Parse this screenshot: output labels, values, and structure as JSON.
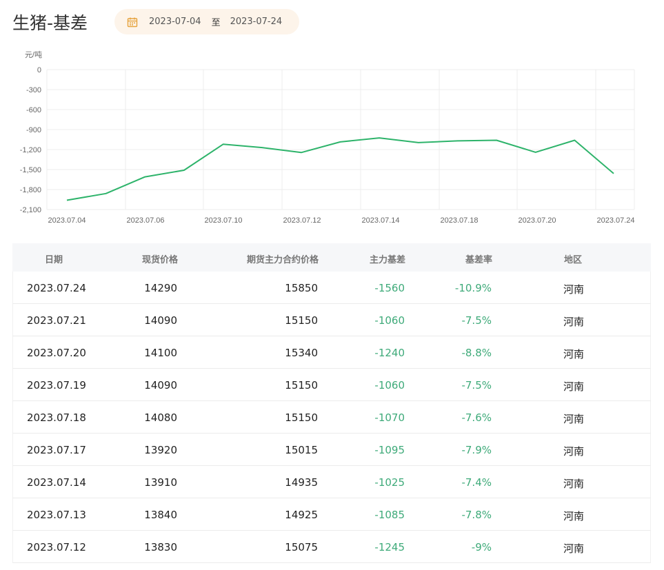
{
  "header": {
    "title": "生猪-基差",
    "date_start": "2023-07-04",
    "date_separator": "至",
    "date_end": "2023-07-24",
    "calendar_icon": "calendar-icon"
  },
  "chart_data": {
    "type": "line",
    "ylabel": "元/吨",
    "ylim": [
      -2100,
      0
    ],
    "yticks": [
      0,
      -300,
      -600,
      -900,
      -1200,
      -1500,
      -1800,
      -2100
    ],
    "ytick_labels": [
      "0",
      "-300",
      "-600",
      "-900",
      "-1,200",
      "-1,500",
      "-1,800",
      "-2,100"
    ],
    "xtick_labels": [
      "2023.07.04",
      "2023.07.06",
      "2023.07.10",
      "2023.07.12",
      "2023.07.14",
      "2023.07.18",
      "2023.07.20",
      "2023.07.24"
    ],
    "grid": true,
    "line_color": "#2db36a",
    "series": [
      {
        "x": [
          "2023.07.04",
          "2023.07.05",
          "2023.07.06",
          "2023.07.07",
          "2023.07.10",
          "2023.07.11",
          "2023.07.12",
          "2023.07.13",
          "2023.07.14",
          "2023.07.17",
          "2023.07.18",
          "2023.07.19",
          "2023.07.20",
          "2023.07.21",
          "2023.07.24"
        ],
        "values": [
          -1960,
          -1860,
          -1610,
          -1510,
          -1120,
          -1170,
          -1245,
          -1085,
          -1025,
          -1095,
          -1070,
          -1060,
          -1240,
          -1060,
          -1560
        ]
      }
    ]
  },
  "table": {
    "headers": [
      "日期",
      "现货价格",
      "期货主力合约价格",
      "主力基差",
      "基差率",
      "地区"
    ],
    "rows": [
      [
        "2023.07.24",
        "14290",
        "15850",
        "-1560",
        "-10.9%",
        "河南"
      ],
      [
        "2023.07.21",
        "14090",
        "15150",
        "-1060",
        "-7.5%",
        "河南"
      ],
      [
        "2023.07.20",
        "14100",
        "15340",
        "-1240",
        "-8.8%",
        "河南"
      ],
      [
        "2023.07.19",
        "14090",
        "15150",
        "-1060",
        "-7.5%",
        "河南"
      ],
      [
        "2023.07.18",
        "14080",
        "15150",
        "-1070",
        "-7.6%",
        "河南"
      ],
      [
        "2023.07.17",
        "13920",
        "15015",
        "-1095",
        "-7.9%",
        "河南"
      ],
      [
        "2023.07.14",
        "13910",
        "14935",
        "-1025",
        "-7.4%",
        "河南"
      ],
      [
        "2023.07.13",
        "13840",
        "14925",
        "-1085",
        "-7.8%",
        "河南"
      ],
      [
        "2023.07.12",
        "13830",
        "15075",
        "-1245",
        "-9%",
        "河南"
      ]
    ],
    "accent_color": "#3eaa79"
  }
}
